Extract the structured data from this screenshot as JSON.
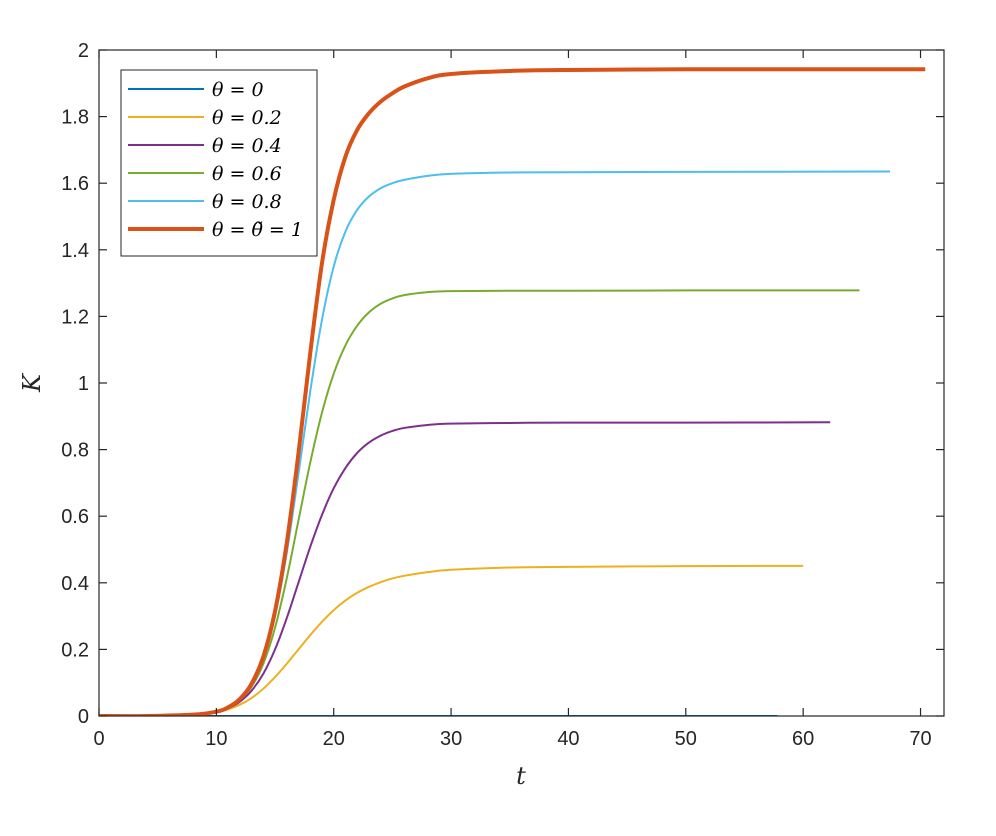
{
  "chart_data": {
    "type": "line",
    "title": "",
    "xlabel": "t",
    "ylabel": "K",
    "xlim": [
      0,
      72
    ],
    "ylim": [
      0,
      2
    ],
    "xticks": [
      0,
      10,
      20,
      30,
      40,
      50,
      60,
      70
    ],
    "yticks": [
      0,
      0.2,
      0.4,
      0.6,
      0.8,
      1,
      1.2,
      1.4,
      1.6,
      1.8,
      2
    ],
    "xtick_labels": [
      "0",
      "10",
      "20",
      "30",
      "40",
      "50",
      "60",
      "70"
    ],
    "ytick_labels": [
      "0",
      "0.2",
      "0.4",
      "0.6",
      "0.8",
      "1",
      "1.2",
      "1.4",
      "1.6",
      "1.8",
      "2"
    ],
    "grid": false,
    "legend_position": "top-left",
    "series": [
      {
        "name": "θ = 0",
        "color": "#0072BD",
        "line_width": "normal",
        "x": [
          0,
          10,
          20,
          30,
          40,
          50,
          57.8
        ],
        "y": [
          0,
          0,
          0,
          0,
          0,
          0,
          0
        ]
      },
      {
        "name": "θ = 0.2",
        "color": "#EDB120",
        "line_width": "normal",
        "x": [
          0,
          4,
          8,
          10,
          11,
          12,
          13,
          14,
          15,
          16,
          17,
          18,
          19,
          20,
          21,
          22,
          23,
          24,
          25,
          26,
          28,
          30,
          35,
          40,
          50,
          60
        ],
        "y": [
          0,
          0,
          0.004,
          0.011,
          0.02,
          0.034,
          0.054,
          0.082,
          0.117,
          0.157,
          0.2,
          0.243,
          0.283,
          0.318,
          0.347,
          0.37,
          0.388,
          0.402,
          0.413,
          0.421,
          0.432,
          0.439,
          0.446,
          0.448,
          0.45,
          0.451
        ]
      },
      {
        "name": "θ = 0.4",
        "color": "#7E2F8E",
        "line_width": "normal",
        "x": [
          0,
          4,
          8,
          10,
          11,
          12,
          13,
          14,
          15,
          16,
          17,
          18,
          19,
          20,
          21,
          22,
          23,
          24,
          25,
          26,
          28,
          30,
          35,
          40,
          50,
          62.3
        ],
        "y": [
          0,
          0,
          0.004,
          0.012,
          0.023,
          0.043,
          0.076,
          0.127,
          0.2,
          0.294,
          0.401,
          0.508,
          0.604,
          0.684,
          0.745,
          0.79,
          0.821,
          0.842,
          0.856,
          0.865,
          0.874,
          0.878,
          0.88,
          0.881,
          0.881,
          0.882
        ]
      },
      {
        "name": "θ = 0.6",
        "color": "#77AC30",
        "line_width": "normal",
        "x": [
          0,
          4,
          8,
          10,
          11,
          12,
          13,
          14,
          15,
          16,
          17,
          18,
          19,
          20,
          21,
          22,
          23,
          24,
          25,
          26,
          28,
          30,
          35,
          40,
          50,
          64.8
        ],
        "y": [
          0,
          0,
          0.004,
          0.013,
          0.025,
          0.048,
          0.088,
          0.157,
          0.265,
          0.414,
          0.588,
          0.761,
          0.911,
          1.028,
          1.113,
          1.172,
          1.212,
          1.238,
          1.254,
          1.264,
          1.273,
          1.276,
          1.277,
          1.277,
          1.278,
          1.278
        ]
      },
      {
        "name": "θ = 0.8",
        "color": "#4DBEEE",
        "line_width": "normal",
        "x": [
          0,
          4,
          8,
          10,
          11,
          12,
          13,
          14,
          15,
          16,
          17,
          18,
          19,
          20,
          21,
          22,
          23,
          24,
          25,
          26,
          28,
          30,
          35,
          40,
          50,
          67.4
        ],
        "y": [
          0,
          0,
          0.004,
          0.013,
          0.026,
          0.05,
          0.095,
          0.172,
          0.3,
          0.49,
          0.728,
          0.975,
          1.19,
          1.35,
          1.455,
          1.52,
          1.56,
          1.585,
          1.6,
          1.61,
          1.622,
          1.628,
          1.632,
          1.633,
          1.634,
          1.635
        ]
      },
      {
        "name": "θ = θ̃ = 1",
        "color": "#D95319",
        "line_width": "thick",
        "x": [
          0,
          4,
          8,
          10,
          11,
          12,
          13,
          14,
          15,
          16,
          17,
          18,
          19,
          20,
          21,
          22,
          23,
          24,
          25,
          26,
          28,
          30,
          35,
          40,
          50,
          60,
          70.4
        ],
        "y": [
          0,
          0,
          0.004,
          0.013,
          0.026,
          0.051,
          0.097,
          0.178,
          0.315,
          0.52,
          0.79,
          1.09,
          1.36,
          1.55,
          1.68,
          1.76,
          1.81,
          1.845,
          1.87,
          1.89,
          1.915,
          1.928,
          1.937,
          1.94,
          1.942,
          1.942,
          1.942
        ]
      }
    ]
  }
}
